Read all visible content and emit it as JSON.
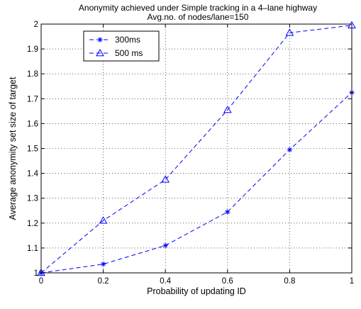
{
  "chart_data": {
    "type": "line",
    "title": "Anonymity achieved under Simple tracking in a 4–lane highway",
    "subtitle": "Avg.no. of nodes/lane=150",
    "xlabel": "Probability of updating ID",
    "ylabel": "Average anonymity set size of target",
    "xlim": [
      0,
      1
    ],
    "ylim": [
      1,
      2
    ],
    "x_ticks": [
      "0",
      "0.2",
      "0.4",
      "0.6",
      "0.8",
      "1"
    ],
    "y_ticks": [
      "1",
      "1.1",
      "1.2",
      "1.3",
      "1.4",
      "1.5",
      "1.6",
      "1.7",
      "1.8",
      "1.9",
      "2"
    ],
    "grid": true,
    "legend_position": "top-left",
    "x": [
      0,
      0.2,
      0.4,
      0.6,
      0.8,
      1.0
    ],
    "series": [
      {
        "name": "300ms",
        "marker": "asterisk",
        "line_style": "dashed",
        "color": "#0000ff",
        "values": [
          1.0,
          1.035,
          1.11,
          1.245,
          1.495,
          1.725
        ]
      },
      {
        "name": "500 ms",
        "marker": "triangle",
        "line_style": "dashed",
        "color": "#0000ff",
        "values": [
          1.0,
          1.21,
          1.375,
          1.655,
          1.965,
          1.995
        ]
      }
    ]
  }
}
